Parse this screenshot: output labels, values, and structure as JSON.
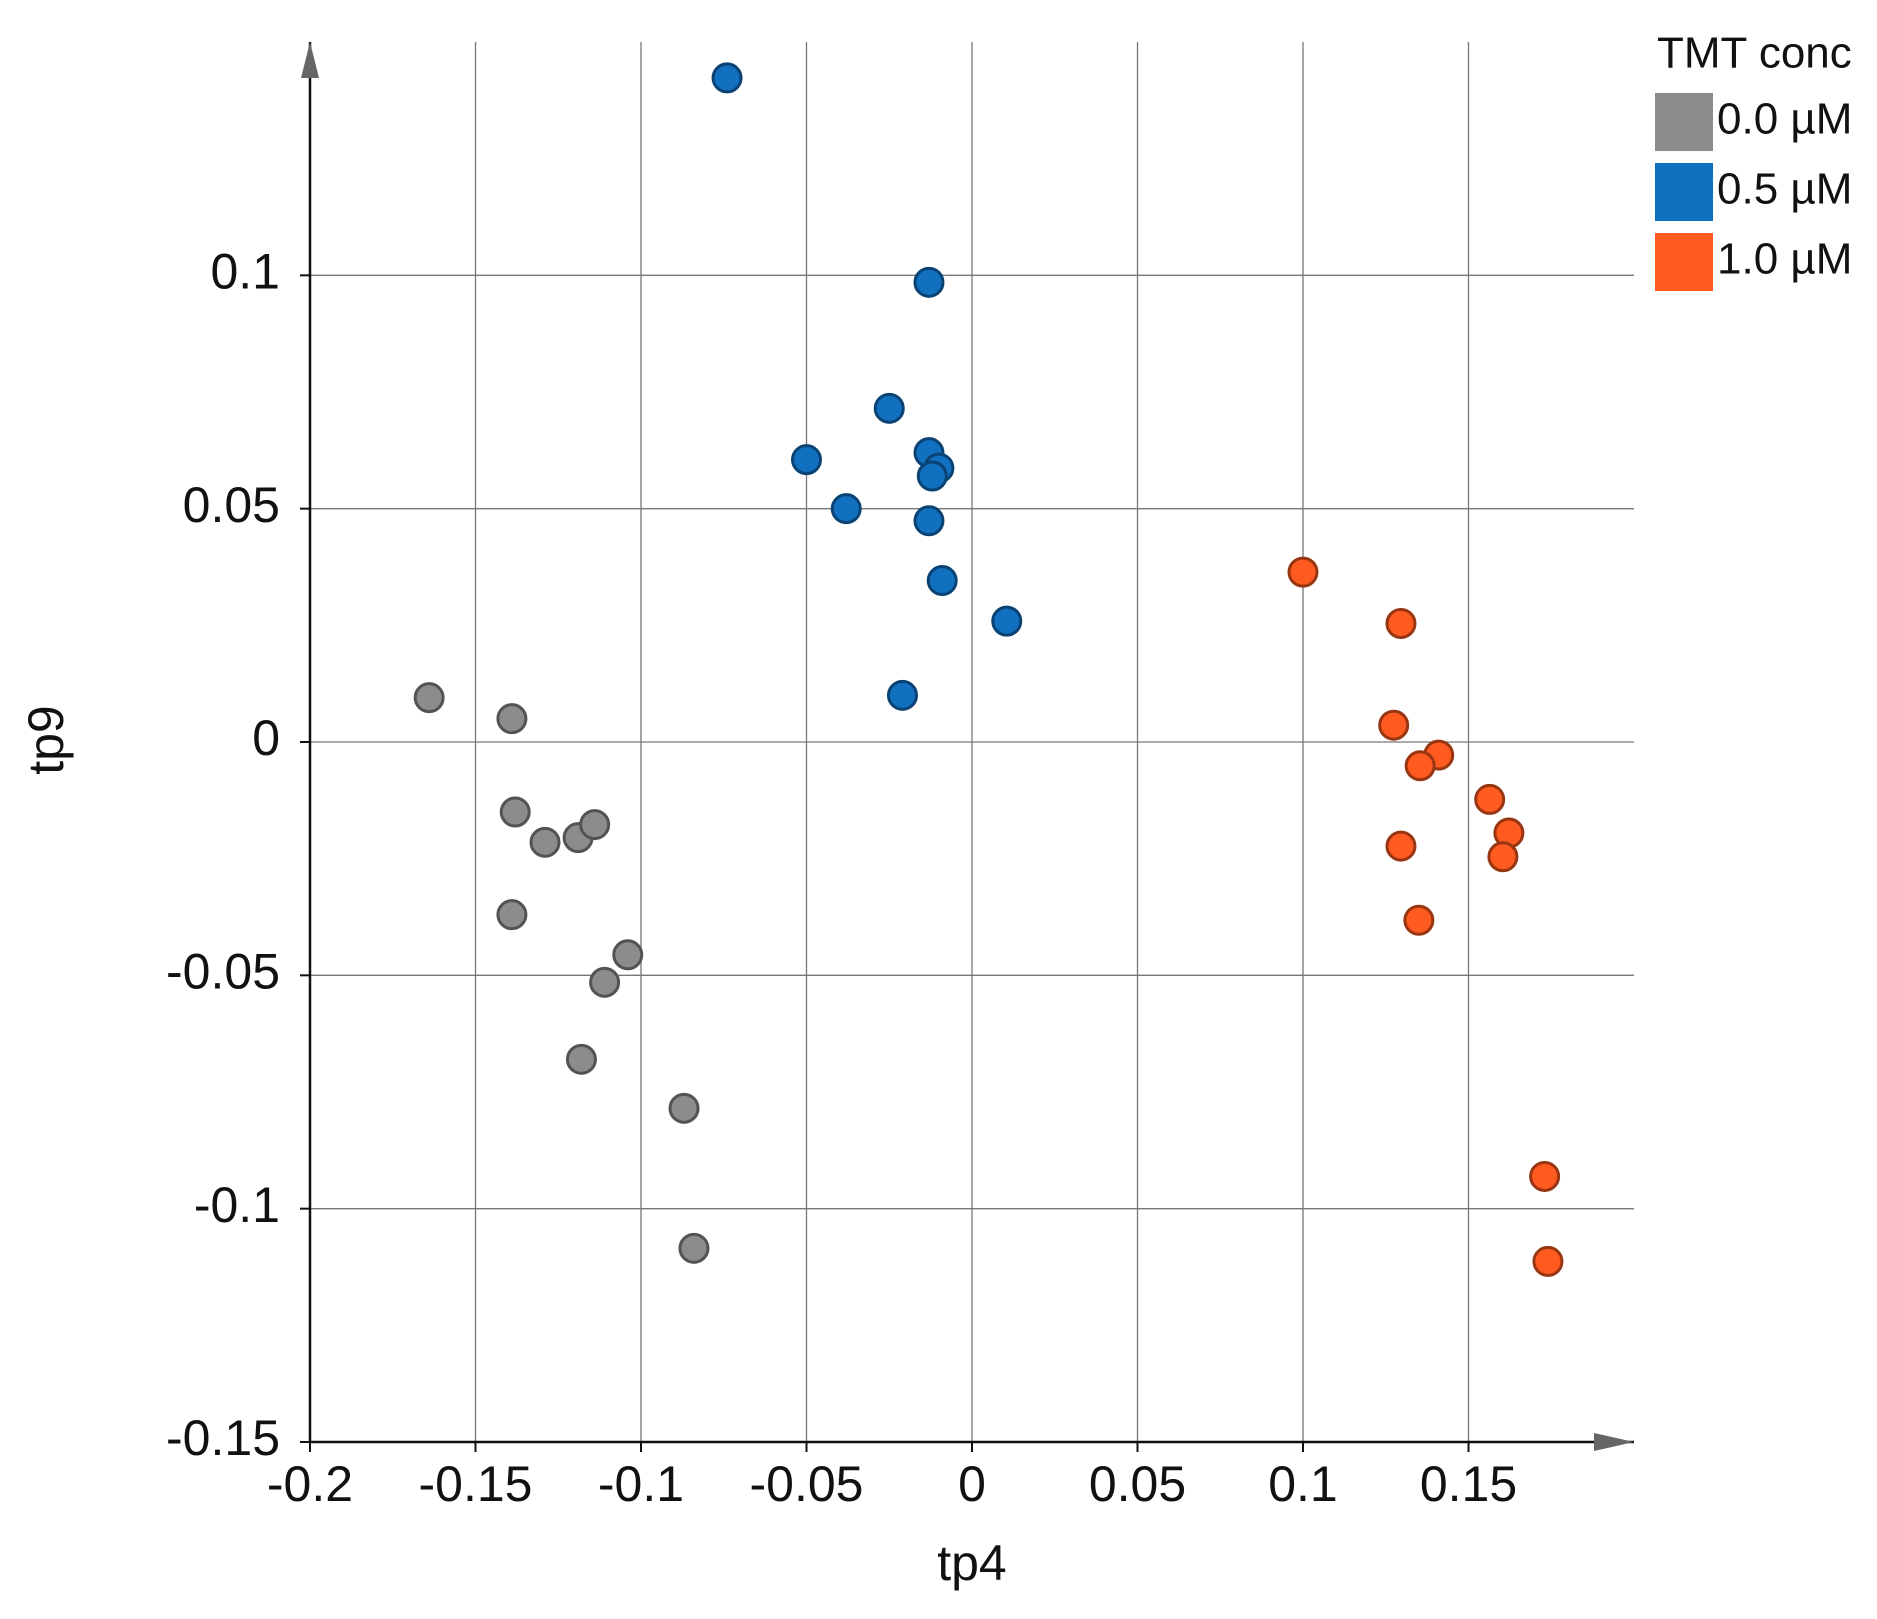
{
  "chart_data": {
    "type": "scatter",
    "x_label": "tp4",
    "y_label": "tp9",
    "legend_title": "TMT conc",
    "legend_position": "top-right",
    "xlim": [
      -0.2,
      0.2
    ],
    "ylim": [
      -0.15,
      0.15
    ],
    "xticks": [
      -0.2,
      -0.15,
      -0.1,
      -0.05,
      0,
      0.05,
      0.1,
      0.15
    ],
    "yticks": [
      -0.15,
      -0.1,
      -0.05,
      0,
      0.05,
      0.1
    ],
    "grid": true,
    "series": [
      {
        "name": "0.0 µM",
        "color": "#8a8d8c",
        "x": [
          -0.164,
          -0.139,
          -0.138,
          -0.129,
          -0.119,
          -0.114,
          -0.139,
          -0.104,
          -0.111,
          -0.118,
          -0.087,
          -0.084
        ],
        "y": [
          0.0095,
          0.005,
          -0.015,
          -0.0215,
          -0.0205,
          -0.0177,
          -0.037,
          -0.0456,
          -0.0515,
          -0.068,
          -0.0785,
          -0.1085
        ]
      },
      {
        "name": "0.5 µM",
        "color": "#1170c0",
        "x": [
          -0.074,
          -0.013,
          -0.025,
          -0.05,
          -0.013,
          -0.01,
          -0.012,
          -0.038,
          -0.013,
          -0.009,
          0.0105,
          -0.021
        ],
        "y": [
          0.1423,
          0.0985,
          0.0715,
          0.0605,
          0.062,
          0.0587,
          0.057,
          0.05,
          0.0474,
          0.0346,
          0.0259,
          0.01
        ]
      },
      {
        "name": "1.0 µM",
        "color": "#ff5a1f",
        "x": [
          0.1,
          0.1296,
          0.1274,
          0.141,
          0.1354,
          0.1564,
          0.1622,
          0.1604,
          0.1296,
          0.135,
          0.173,
          0.174
        ],
        "y": [
          0.0364,
          0.0254,
          0.0036,
          -0.0028,
          -0.0051,
          -0.0123,
          -0.0195,
          -0.0246,
          -0.0223,
          -0.0382,
          -0.0931,
          -0.1113
        ]
      }
    ]
  }
}
